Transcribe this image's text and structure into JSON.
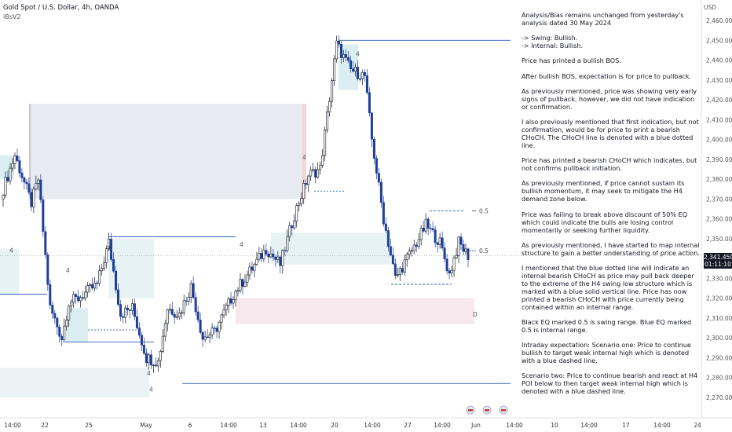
{
  "header": {
    "title": "Gold Spot / U.S. Dollar, 4h, OANDA",
    "indicator": "iBsV2"
  },
  "price_axis": {
    "currency": "USD",
    "ticks": [
      "2,460.000",
      "2,450.000",
      "2,440.000",
      "2,430.000",
      "2,420.000",
      "2,410.000",
      "2,400.000",
      "2,390.000",
      "2,380.000",
      "2,370.000",
      "2,360.000",
      "2,350.000",
      "2,340.000",
      "2,330.000",
      "2,320.000",
      "2,310.000",
      "2,300.000",
      "2,290.000",
      "2,280.000",
      "2,270.000"
    ],
    "current_price": "2,341.450",
    "countdown": "01:11:10"
  },
  "time_axis": {
    "ticks": [
      "14:00",
      "22",
      "25",
      "May",
      "6",
      "14:00",
      "13",
      "20",
      "27",
      "14:00",
      "Jun",
      "10",
      "14:00",
      "17",
      "14:00",
      "24"
    ]
  },
  "annotations": {
    "swing_eq": "0.5",
    "internal_eq": "0.5",
    "poi_marker": "D"
  },
  "analysis": [
    "Analysis/Bias remains unchanged from yesterday's analysis dated 30 May 2024",
    "-> Swing:  Bullish.\n-> Internal:  Bullish.",
    "Price has printed a bullish BOS.",
    "After bullish BOS, expectation is for price to pullback.",
    "As previously mentioned, price was showing very early signs of pullback, however, we did not have indication or confirmation.",
    "I also previously mentioned that first indication, but not confirmation, would be for price to print a bearish CHoCH.  The CHoCH line is denoted with a blue dotted line.",
    "Price has printed a bearish CHoCH which indicates, but not confirms pullback initiation.",
    "As previously mentioned, if price cannot sustain its bullish momentum, it may seek to mitigate the H4 demand zone below.",
    "Price was failing to break above discount of 50% EQ which could indicate the bulls are losing control momentarily or seeking further liquidity.",
    "As previously mentioned, I have started to map internal structure to gain a better understanding of price action.",
    "I mentioned that the blue dotted line will indicate an internal bearish CHoCH as price may pull back deeper to the extreme of the H4 swing low structure which is marked with a blue solid vertical line.  Price has now printed a bearish CHoCH with price currently being contained within an internal range.",
    "Black EQ marked 0.5 is swing range.  Blue EQ marked 0.5 is internal range.",
    "Intraday expectation: Scenario one:  Price to continue bullish to target weak internal high which is denoted with a blue dashed line.",
    "Scenario two: Price to continue bearish and react at H4 POI below to then target weak internal high which is denoted with a blue dashed line."
  ],
  "chart_data": {
    "type": "candlestick",
    "title": "Gold Spot / U.S. Dollar, 4h, OANDA",
    "ylim": [
      2265,
      2465
    ],
    "y_ticks": [
      2270,
      2280,
      2290,
      2300,
      2310,
      2320,
      2330,
      2340,
      2350,
      2360,
      2370,
      2380,
      2390,
      2400,
      2410,
      2420,
      2430,
      2440,
      2450,
      2460
    ],
    "current_price": 2341.45,
    "grid": false,
    "path_keypoints": [
      {
        "i": 0,
        "p": 2375
      },
      {
        "i": 5,
        "p": 2392
      },
      {
        "i": 12,
        "p": 2368
      },
      {
        "i": 15,
        "p": 2380
      },
      {
        "i": 20,
        "p": 2315
      },
      {
        "i": 25,
        "p": 2300
      },
      {
        "i": 28,
        "p": 2318
      },
      {
        "i": 32,
        "p": 2320
      },
      {
        "i": 40,
        "p": 2327
      },
      {
        "i": 45,
        "p": 2348
      },
      {
        "i": 50,
        "p": 2312
      },
      {
        "i": 55,
        "p": 2315
      },
      {
        "i": 61,
        "p": 2290
      },
      {
        "i": 66,
        "p": 2288
      },
      {
        "i": 70,
        "p": 2315
      },
      {
        "i": 75,
        "p": 2312
      },
      {
        "i": 80,
        "p": 2326
      },
      {
        "i": 85,
        "p": 2300
      },
      {
        "i": 90,
        "p": 2303
      },
      {
        "i": 98,
        "p": 2322
      },
      {
        "i": 106,
        "p": 2335
      },
      {
        "i": 112,
        "p": 2345
      },
      {
        "i": 118,
        "p": 2337
      },
      {
        "i": 124,
        "p": 2362
      },
      {
        "i": 130,
        "p": 2382
      },
      {
        "i": 135,
        "p": 2385
      },
      {
        "i": 142,
        "p": 2448
      },
      {
        "i": 148,
        "p": 2435
      },
      {
        "i": 154,
        "p": 2432
      },
      {
        "i": 157,
        "p": 2400
      },
      {
        "i": 162,
        "p": 2360
      },
      {
        "i": 167,
        "p": 2330
      },
      {
        "i": 172,
        "p": 2340
      },
      {
        "i": 176,
        "p": 2348
      },
      {
        "i": 180,
        "p": 2357
      },
      {
        "i": 186,
        "p": 2348
      },
      {
        "i": 190,
        "p": 2332
      },
      {
        "i": 194,
        "p": 2348
      },
      {
        "i": 198,
        "p": 2341.45
      }
    ],
    "zones": [
      {
        "name": "supply-zone",
        "type": "supply",
        "from": 2370,
        "to": 2418
      },
      {
        "name": "demand-zone",
        "type": "demand",
        "from": 2307,
        "to": 2320
      },
      {
        "name": "internal-range-zone",
        "type": "demand",
        "from": 2337,
        "to": 2353
      }
    ],
    "levels": [
      {
        "name": "swing-high-line",
        "price": 2450,
        "style": "solid"
      },
      {
        "name": "swing-low-line",
        "price": 2277,
        "style": "solid"
      },
      {
        "name": "internal-high-line",
        "price": 2351,
        "style": "solid"
      },
      {
        "name": "internal-low-line",
        "price": 2298,
        "style": "solid"
      },
      {
        "name": "choch-line",
        "price": 2304,
        "style": "dotted"
      },
      {
        "name": "weak-internal-high",
        "price": 2364,
        "style": "dashed"
      },
      {
        "name": "internal-range-low",
        "price": 2327,
        "style": "dashed"
      },
      {
        "name": "swing-eq-line",
        "price": 2364,
        "label": "0.5",
        "style": "dashed"
      },
      {
        "name": "internal-eq-line",
        "price": 2344,
        "label": "0.5",
        "style": "dashed"
      },
      {
        "name": "ltf-bos-line",
        "price": 2322,
        "style": "solid"
      }
    ]
  }
}
